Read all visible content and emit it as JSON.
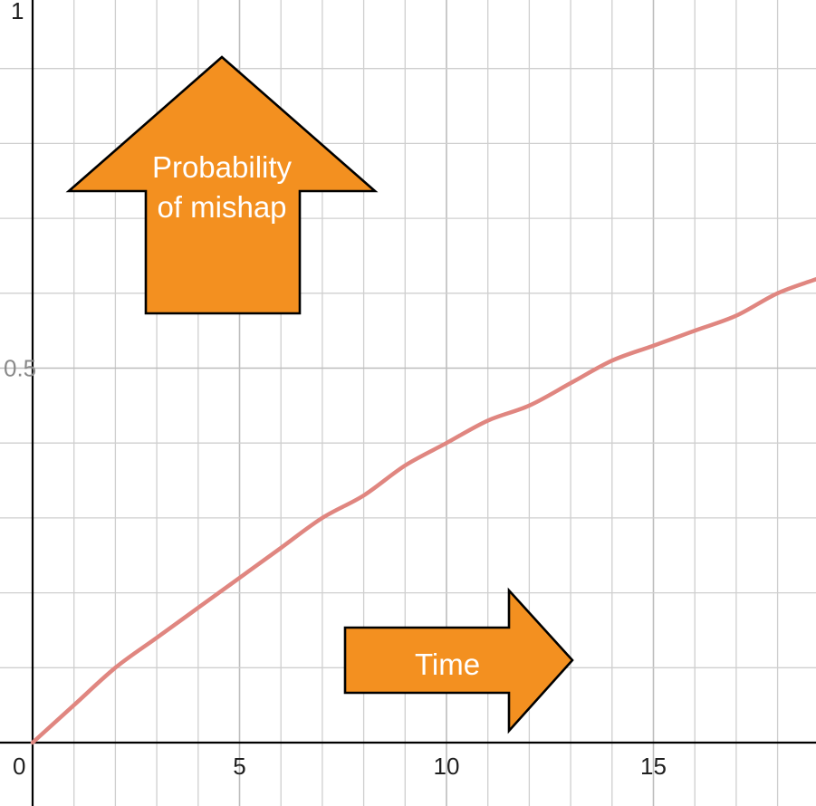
{
  "chart_data": {
    "type": "line",
    "x_ticks": [
      0,
      5,
      10,
      15
    ],
    "y_ticks": [
      0.5,
      1
    ],
    "xlim": [
      0,
      19
    ],
    "ylim": [
      0,
      1
    ],
    "grid": true,
    "x_minor_step": 1,
    "y_minor_step": 0.1,
    "series": [
      {
        "color": "#e08680",
        "x": [
          0,
          1,
          2,
          3,
          4,
          5,
          6,
          7,
          8,
          9,
          10,
          11,
          12,
          13,
          14,
          15,
          16,
          17,
          18,
          19
        ],
        "y": [
          0,
          0.05,
          0.1,
          0.14,
          0.18,
          0.22,
          0.26,
          0.3,
          0.33,
          0.37,
          0.4,
          0.43,
          0.45,
          0.48,
          0.51,
          0.53,
          0.55,
          0.57,
          0.6,
          0.62
        ]
      }
    ],
    "annotations": [
      {
        "id": "up-arrow",
        "text_lines": [
          "Probability",
          "of mishap"
        ],
        "direction": "up",
        "color": "#f39020"
      },
      {
        "id": "right-arrow",
        "text_lines": [
          "Time"
        ],
        "direction": "right",
        "color": "#f39020"
      }
    ]
  }
}
